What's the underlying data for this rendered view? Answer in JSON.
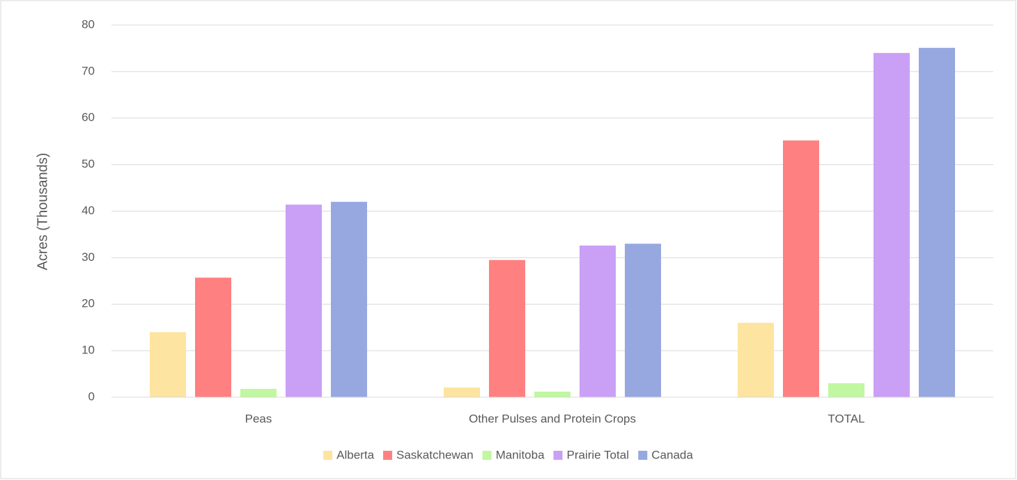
{
  "chart_data": {
    "type": "bar",
    "y_label": "Acres (Thousands)",
    "categories": [
      "Peas",
      "Other Pulses and Protein Crops",
      "TOTAL"
    ],
    "series": [
      {
        "name": "Alberta",
        "color": "#fde4a0",
        "values": [
          14.0,
          2.1,
          16.0
        ]
      },
      {
        "name": "Saskatchewan",
        "color": "#ff8080",
        "values": [
          25.7,
          29.5,
          55.2
        ]
      },
      {
        "name": "Manitoba",
        "color": "#c0f7a0",
        "values": [
          1.8,
          1.2,
          3.0
        ]
      },
      {
        "name": "Prairie Total",
        "color": "#c9a0f5",
        "values": [
          41.4,
          32.6,
          74.0
        ]
      },
      {
        "name": "Canada",
        "color": "#97a8e0",
        "values": [
          42.0,
          33.0,
          75.1
        ]
      }
    ],
    "ylim": [
      0,
      80
    ],
    "yticks": [
      0,
      10,
      20,
      30,
      40,
      50,
      60,
      70,
      80
    ],
    "grid": true,
    "legend": "bottom"
  }
}
